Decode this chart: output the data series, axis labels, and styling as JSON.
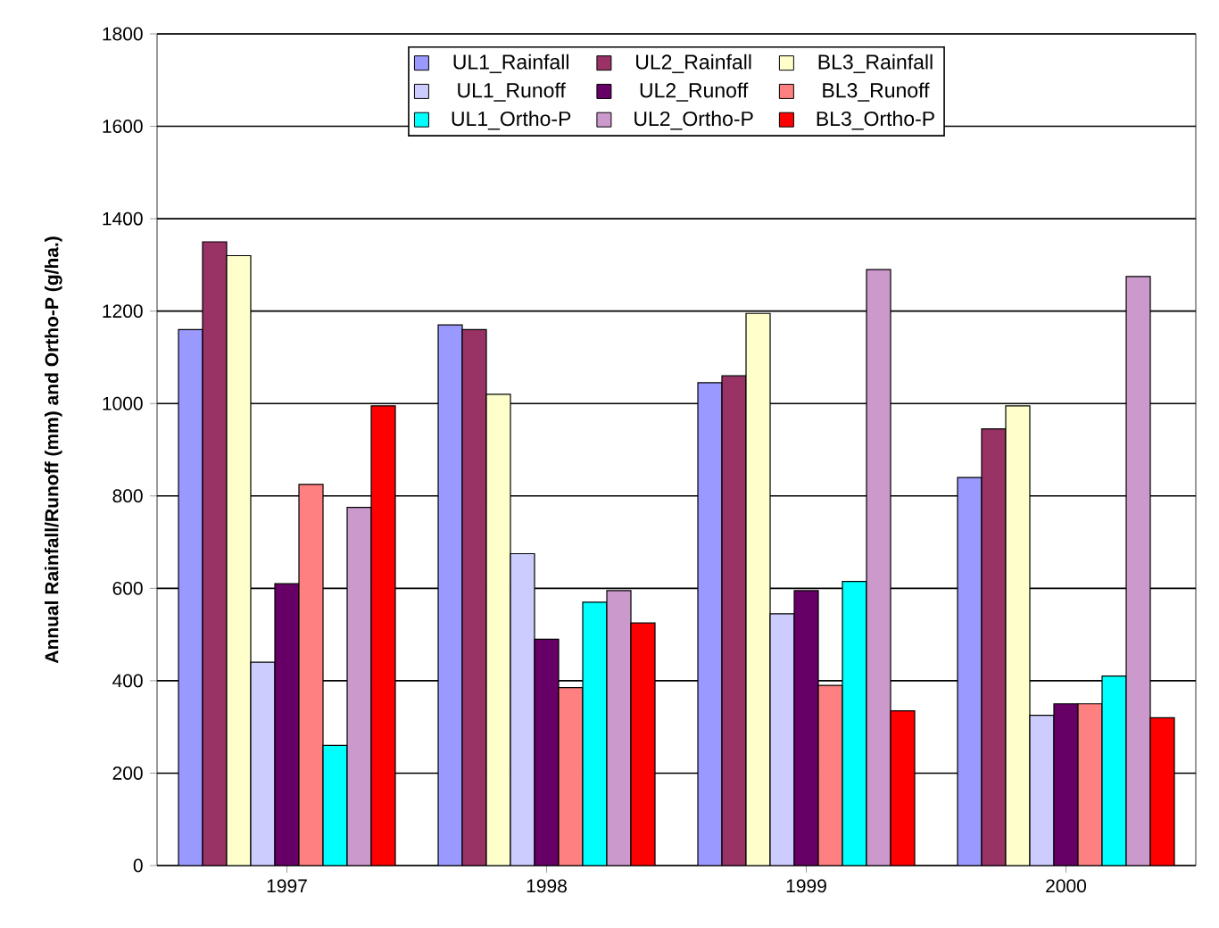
{
  "chart_data": {
    "type": "bar",
    "ylabel": "Annual Rainfall/Runoff (mm) and Ortho-P (g/ha.)",
    "categories": [
      "1997",
      "1998",
      "1999",
      "2000"
    ],
    "series": [
      {
        "name": "UL1_Rainfall",
        "color": "#9999ff",
        "values": [
          1160,
          1170,
          1045,
          840
        ]
      },
      {
        "name": "UL2_Rainfall",
        "color": "#993366",
        "values": [
          1350,
          1160,
          1060,
          945
        ]
      },
      {
        "name": "BL3_Rainfall",
        "color": "#ffffcc",
        "values": [
          1320,
          1020,
          1195,
          995
        ]
      },
      {
        "name": "UL1_Runoff",
        "color": "#ccccff",
        "values": [
          440,
          675,
          545,
          325
        ]
      },
      {
        "name": "UL2_Runoff",
        "color": "#660066",
        "values": [
          610,
          490,
          595,
          350
        ]
      },
      {
        "name": "BL3_Runoff",
        "color": "#ff8080",
        "values": [
          825,
          385,
          390,
          350
        ]
      },
      {
        "name": "UL1_Ortho-P",
        "color": "#00ffff",
        "values": [
          260,
          570,
          615,
          410
        ]
      },
      {
        "name": "UL2_Ortho-P",
        "color": "#cc99cc",
        "values": [
          775,
          595,
          1290,
          1275
        ]
      },
      {
        "name": "BL3_Ortho-P",
        "color": "#ff0000",
        "values": [
          995,
          525,
          335,
          320
        ]
      }
    ],
    "ylim": [
      0,
      1800
    ],
    "yticks": [
      0,
      200,
      400,
      600,
      800,
      1000,
      1200,
      1400,
      1600,
      1800
    ],
    "grid": "y",
    "legend": "top"
  }
}
